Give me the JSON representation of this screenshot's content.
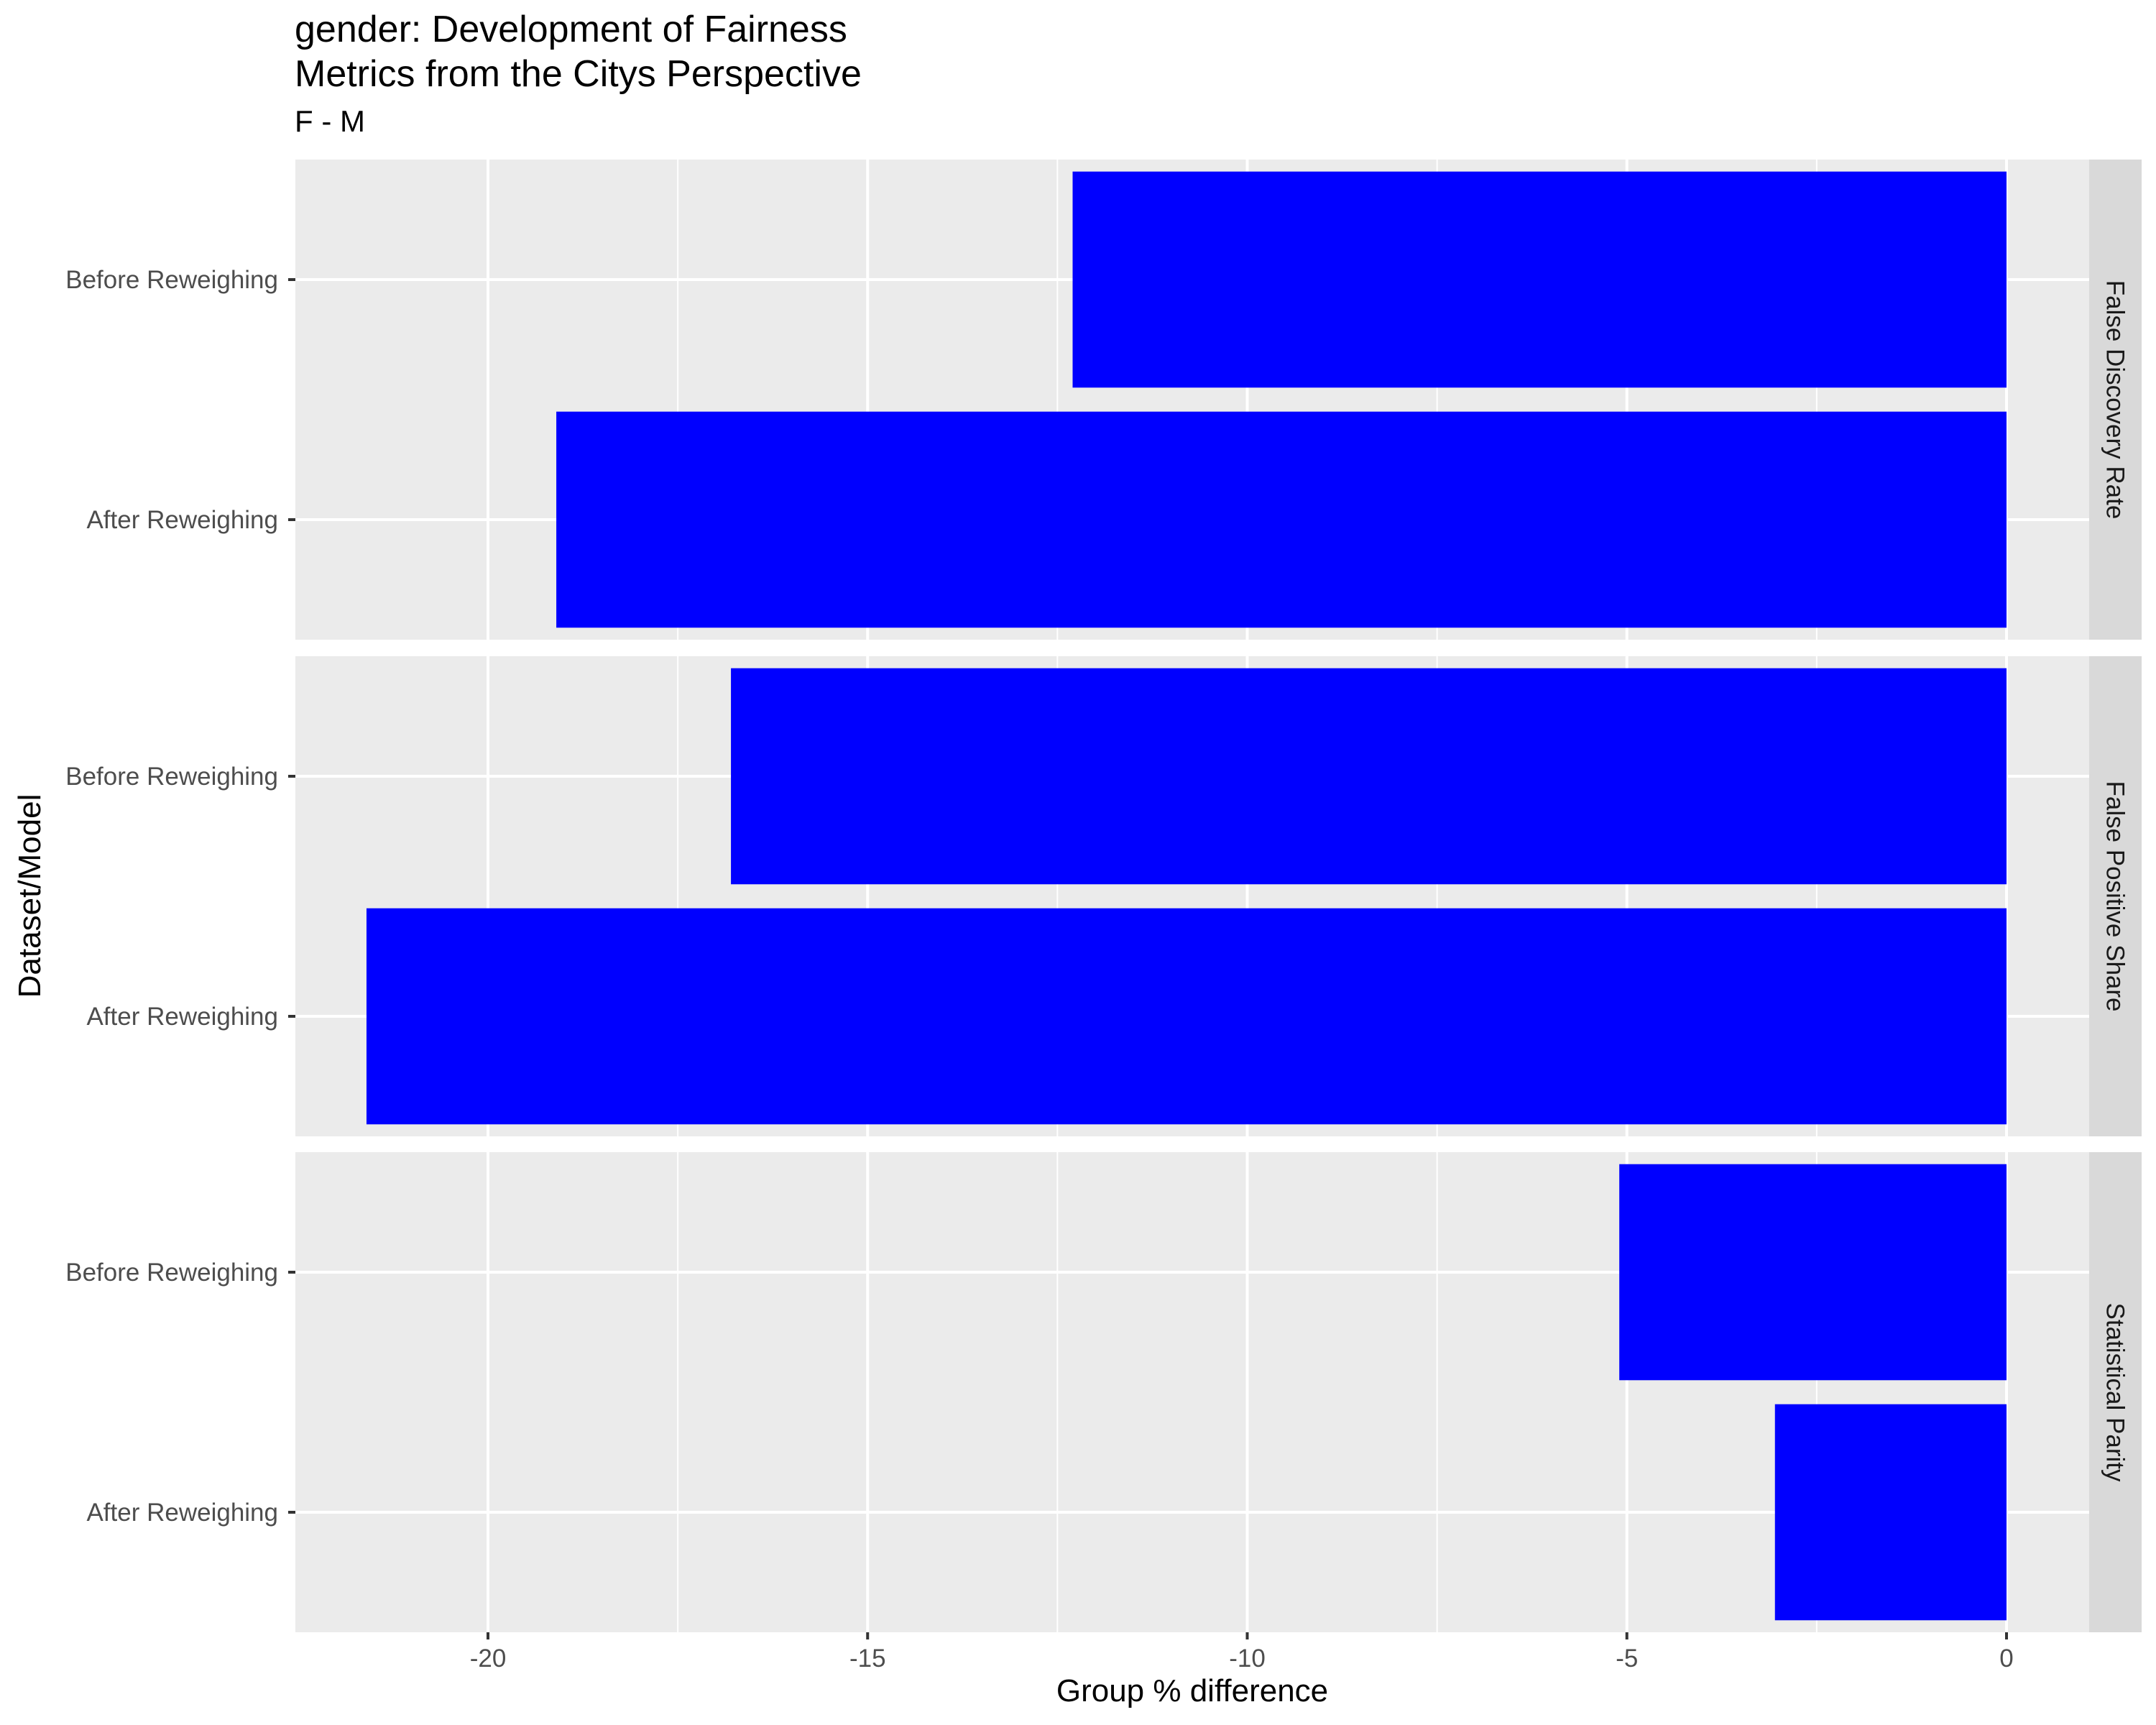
{
  "chart_data": {
    "type": "bar",
    "orientation": "horizontal",
    "title": [
      "gender: Development of Fairness",
      "Metrics from the Citys Perspective"
    ],
    "subtitle": "F - M",
    "xlabel": "Group % difference",
    "ylabel": "Dataset/Model",
    "xlim": [
      -22.5,
      1.2
    ],
    "xticks": [
      -20,
      -15,
      -10,
      -5,
      0
    ],
    "xtick_labels": [
      "-20",
      "-15",
      "-10",
      "-5",
      "0"
    ],
    "categories": [
      "Before Reweighing",
      "After Reweighing"
    ],
    "bar_color": "#0000ff",
    "panel_bg": "#ebebeb",
    "strip_bg": "#d9d9d9",
    "grid": true,
    "facets": [
      {
        "name": "False Discovery Rate",
        "values": [
          -12.3,
          -19.1
        ]
      },
      {
        "name": "False Positive Share",
        "values": [
          -16.8,
          -21.6
        ]
      },
      {
        "name": "Statistical Parity",
        "values": [
          -5.1,
          -3.05
        ]
      }
    ]
  }
}
